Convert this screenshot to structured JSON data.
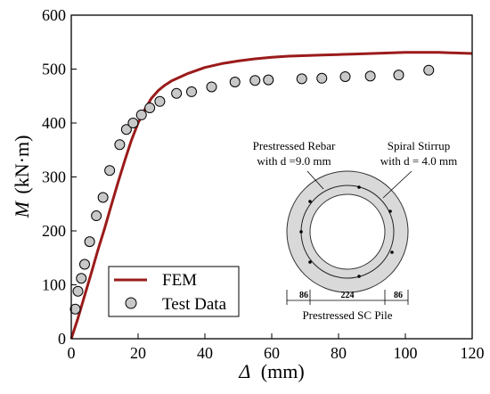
{
  "chart_data": {
    "type": "line",
    "xlabel_symbol": "Δ",
    "xlabel_unit": "(mm)",
    "ylabel_symbol": "M",
    "ylabel_unit": "(kN·m)",
    "xlim": [
      0,
      120
    ],
    "ylim": [
      0,
      600
    ],
    "xticks": [
      0,
      20,
      40,
      60,
      80,
      100,
      120
    ],
    "yticks": [
      0,
      100,
      200,
      300,
      400,
      500,
      600
    ],
    "grid": false,
    "legend_position": "bottom-left",
    "series": [
      {
        "name": "FEM",
        "kind": "line",
        "color": "#9b1b1b",
        "x": [
          0,
          2,
          4,
          6,
          8,
          10,
          12,
          14,
          16,
          18,
          20,
          22,
          24,
          26,
          28,
          30,
          35,
          40,
          45,
          50,
          55,
          60,
          65,
          70,
          75,
          80,
          85,
          90,
          95,
          100,
          105,
          110,
          115,
          120
        ],
        "y": [
          0,
          38,
          80,
          122,
          165,
          205,
          248,
          290,
          330,
          368,
          400,
          425,
          446,
          460,
          470,
          478,
          492,
          503,
          510,
          515,
          519,
          522,
          524,
          525,
          526,
          527,
          528,
          529,
          530,
          531,
          531,
          531,
          530,
          529
        ]
      },
      {
        "name": "Test Data",
        "kind": "scatter",
        "color": "#c8c8c8",
        "x": [
          1.2,
          2.0,
          3.0,
          4.0,
          5.5,
          7.5,
          9.5,
          11.5,
          14.5,
          16.5,
          18.5,
          21.0,
          23.5,
          26.5,
          31.5,
          36.0,
          42.0,
          49.0,
          55.0,
          59.0,
          69.0,
          75.0,
          82.0,
          89.5,
          98.0,
          107.0
        ],
        "y": [
          55,
          88,
          112,
          138,
          180,
          228,
          262,
          312,
          360,
          388,
          400,
          415,
          428,
          440,
          455,
          458,
          467,
          476,
          479,
          480,
          482,
          483,
          486,
          487,
          489,
          498
        ]
      }
    ],
    "inset": {
      "title": "Prestressed SC Pile",
      "callout_rebar": [
        "Prestressed Rebar",
        "with d =9.0 mm"
      ],
      "callout_stirrup": [
        "Spiral Stirrup",
        "with d = 4.0 mm"
      ],
      "dimensions": [
        "86",
        "224",
        "86"
      ]
    }
  }
}
